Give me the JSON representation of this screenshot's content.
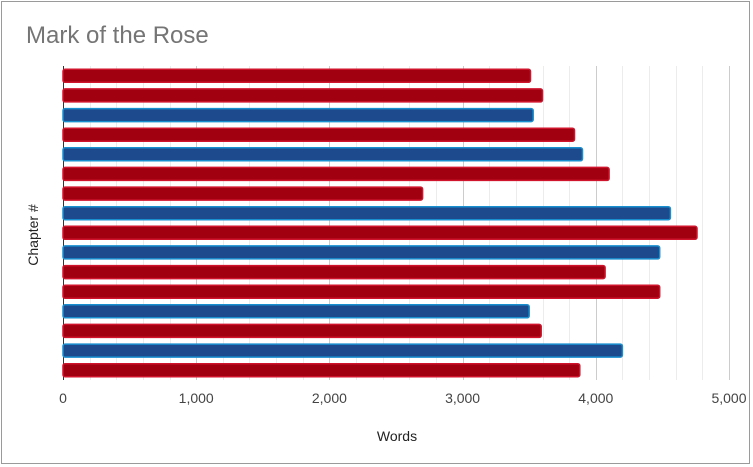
{
  "chart_data": {
    "type": "bar",
    "orientation": "horizontal",
    "title": "Mark of the Rose",
    "xlabel": "Words",
    "ylabel": "Chapter #",
    "xlim": [
      0,
      5000
    ],
    "xticks": [
      0,
      1000,
      2000,
      3000,
      4000,
      5000
    ],
    "xtick_labels": [
      "0",
      "1,000",
      "2,000",
      "3,000",
      "4,000",
      "5,000"
    ],
    "grid": true,
    "legend": "none",
    "colors": {
      "red": "#a10010",
      "red_edge": "#d0142c",
      "blue": "#1c4a8c",
      "blue_edge": "#1a8fd0"
    },
    "bars": [
      {
        "value": 3510,
        "color": "red"
      },
      {
        "value": 3600,
        "color": "red"
      },
      {
        "value": 3530,
        "color": "blue"
      },
      {
        "value": 3840,
        "color": "red"
      },
      {
        "value": 3900,
        "color": "blue"
      },
      {
        "value": 4100,
        "color": "red"
      },
      {
        "value": 2700,
        "color": "red"
      },
      {
        "value": 4560,
        "color": "blue"
      },
      {
        "value": 4760,
        "color": "red"
      },
      {
        "value": 4480,
        "color": "blue"
      },
      {
        "value": 4070,
        "color": "red"
      },
      {
        "value": 4480,
        "color": "red"
      },
      {
        "value": 3500,
        "color": "blue"
      },
      {
        "value": 3590,
        "color": "red"
      },
      {
        "value": 4200,
        "color": "blue"
      },
      {
        "value": 3880,
        "color": "red"
      }
    ]
  }
}
